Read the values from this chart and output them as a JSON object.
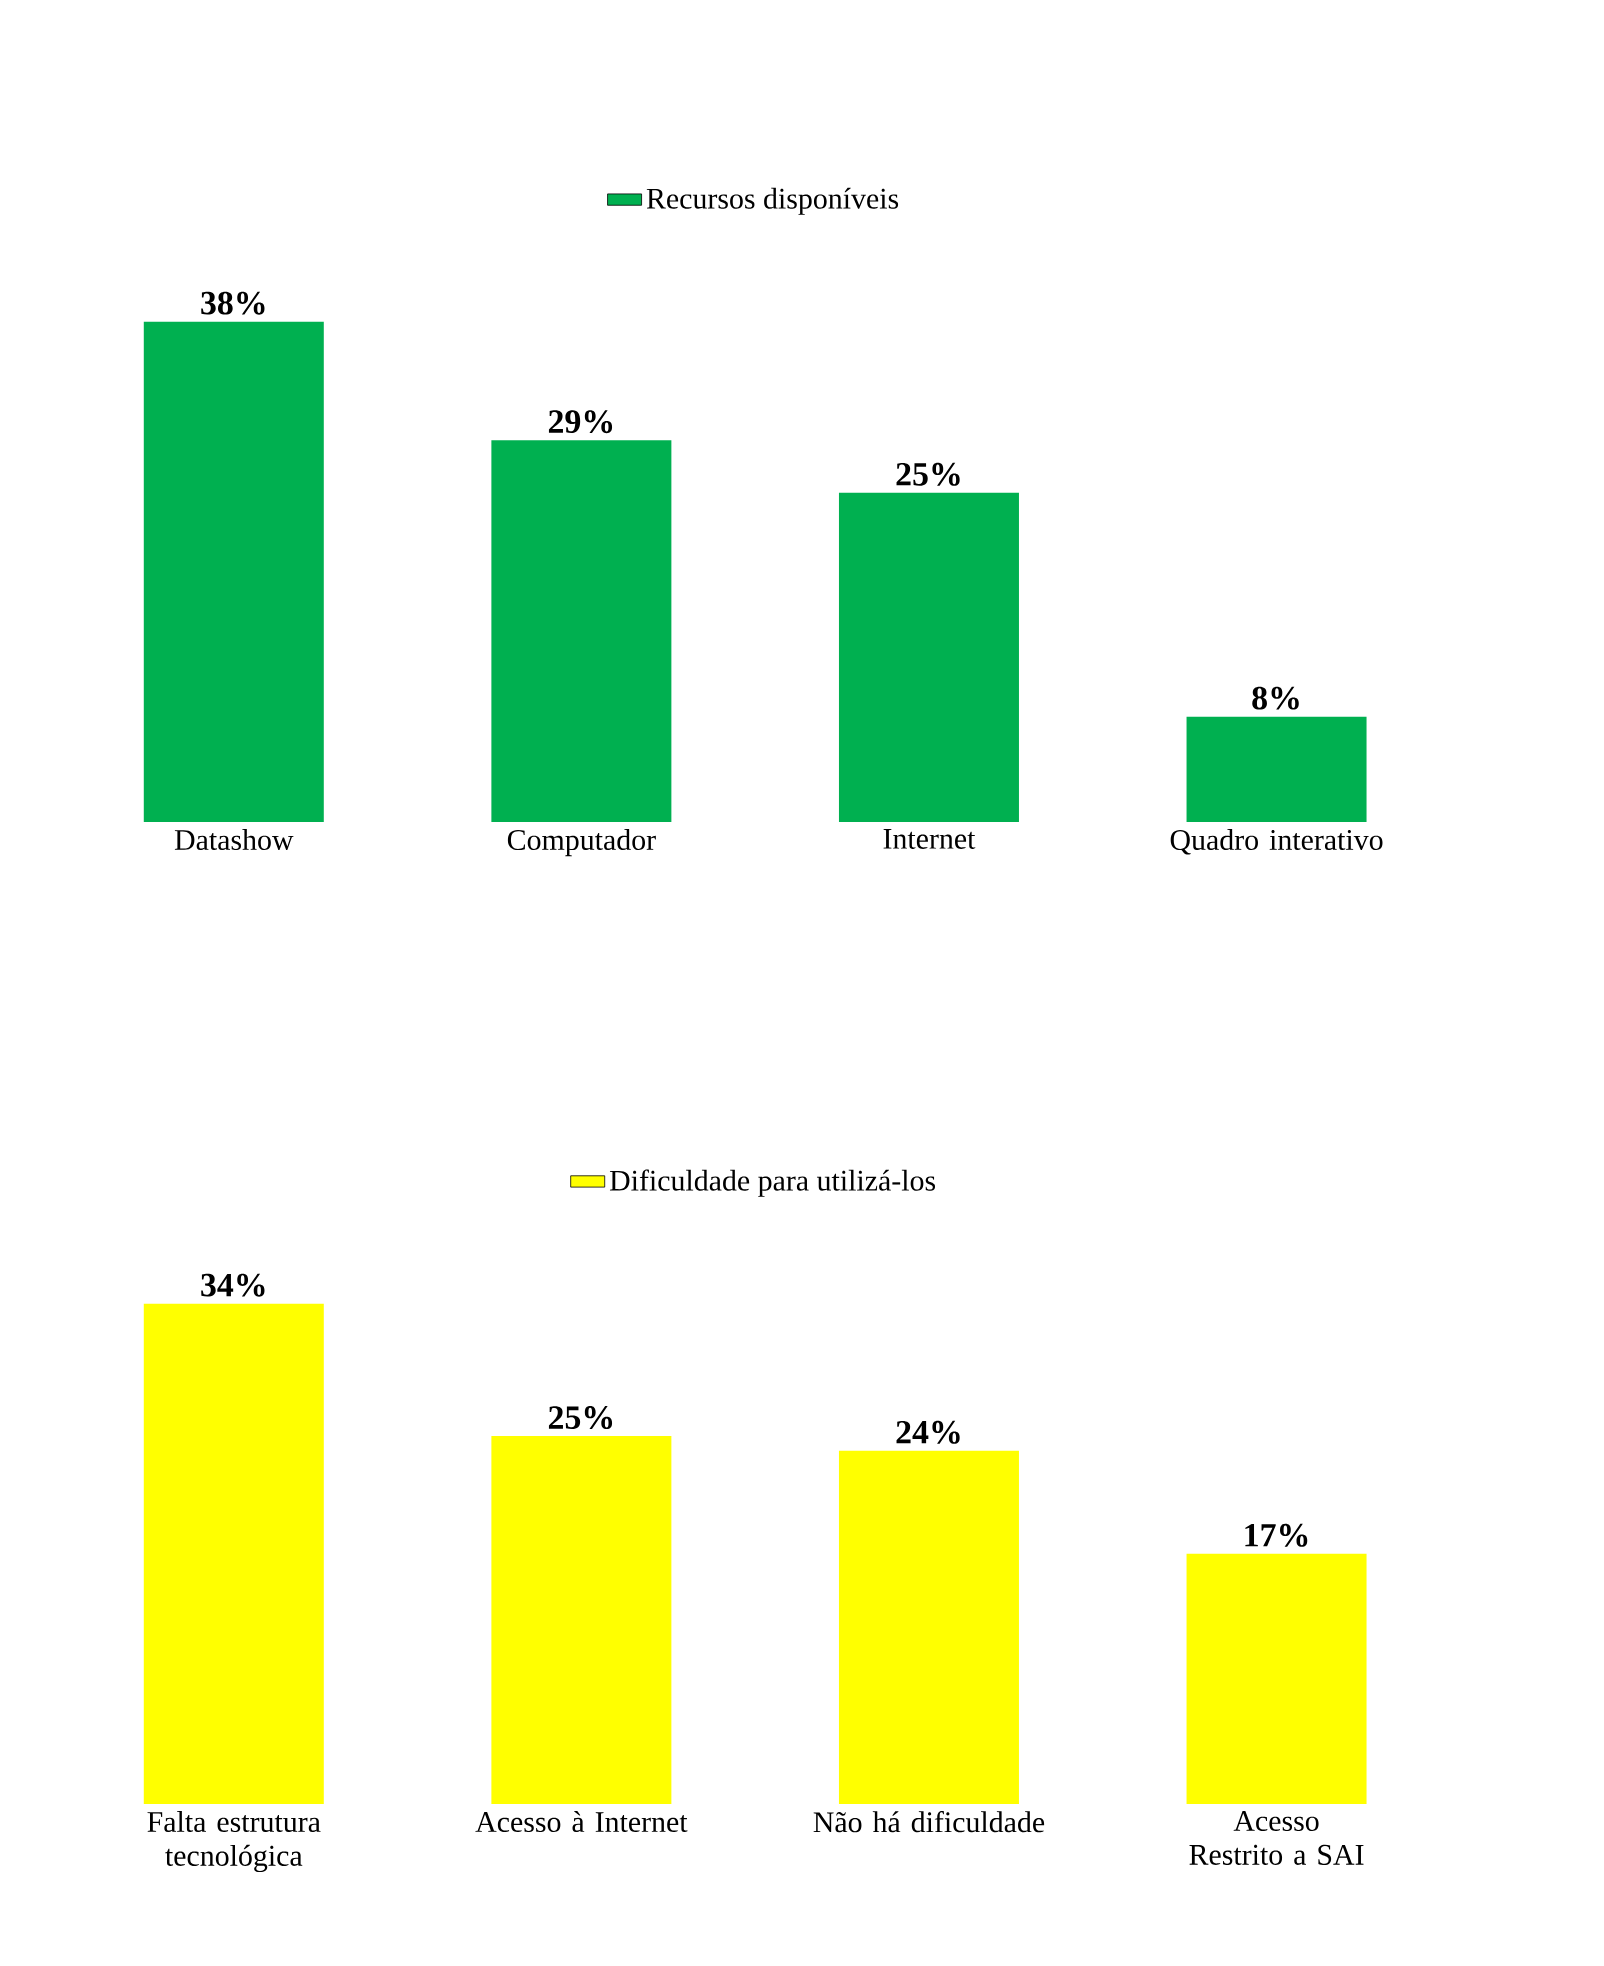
{
  "chart_data": [
    {
      "type": "bar",
      "categories": [
        "Datashow",
        "Computador",
        "Internet",
        "Quadro interativo"
      ],
      "series": [
        {
          "name": "Recursos disponíveis",
          "color": "#00b050",
          "values": [
            38,
            29,
            25,
            8
          ],
          "value_labels": [
            "38%",
            "29%",
            "25%",
            "8%"
          ]
        }
      ],
      "legend": "top"
    },
    {
      "type": "bar",
      "categories": [
        "Falta estrutura tecnológica",
        "Acesso à Internet",
        "Não há dificuldade",
        "Acesso Restrito a SAI"
      ],
      "series": [
        {
          "name": "Dificuldade para utilizá-los",
          "color": "#ffff00",
          "values": [
            34,
            25,
            24,
            17
          ],
          "value_labels": [
            "34%",
            "25%",
            "24%",
            "17%"
          ]
        }
      ],
      "legend": "top"
    }
  ]
}
